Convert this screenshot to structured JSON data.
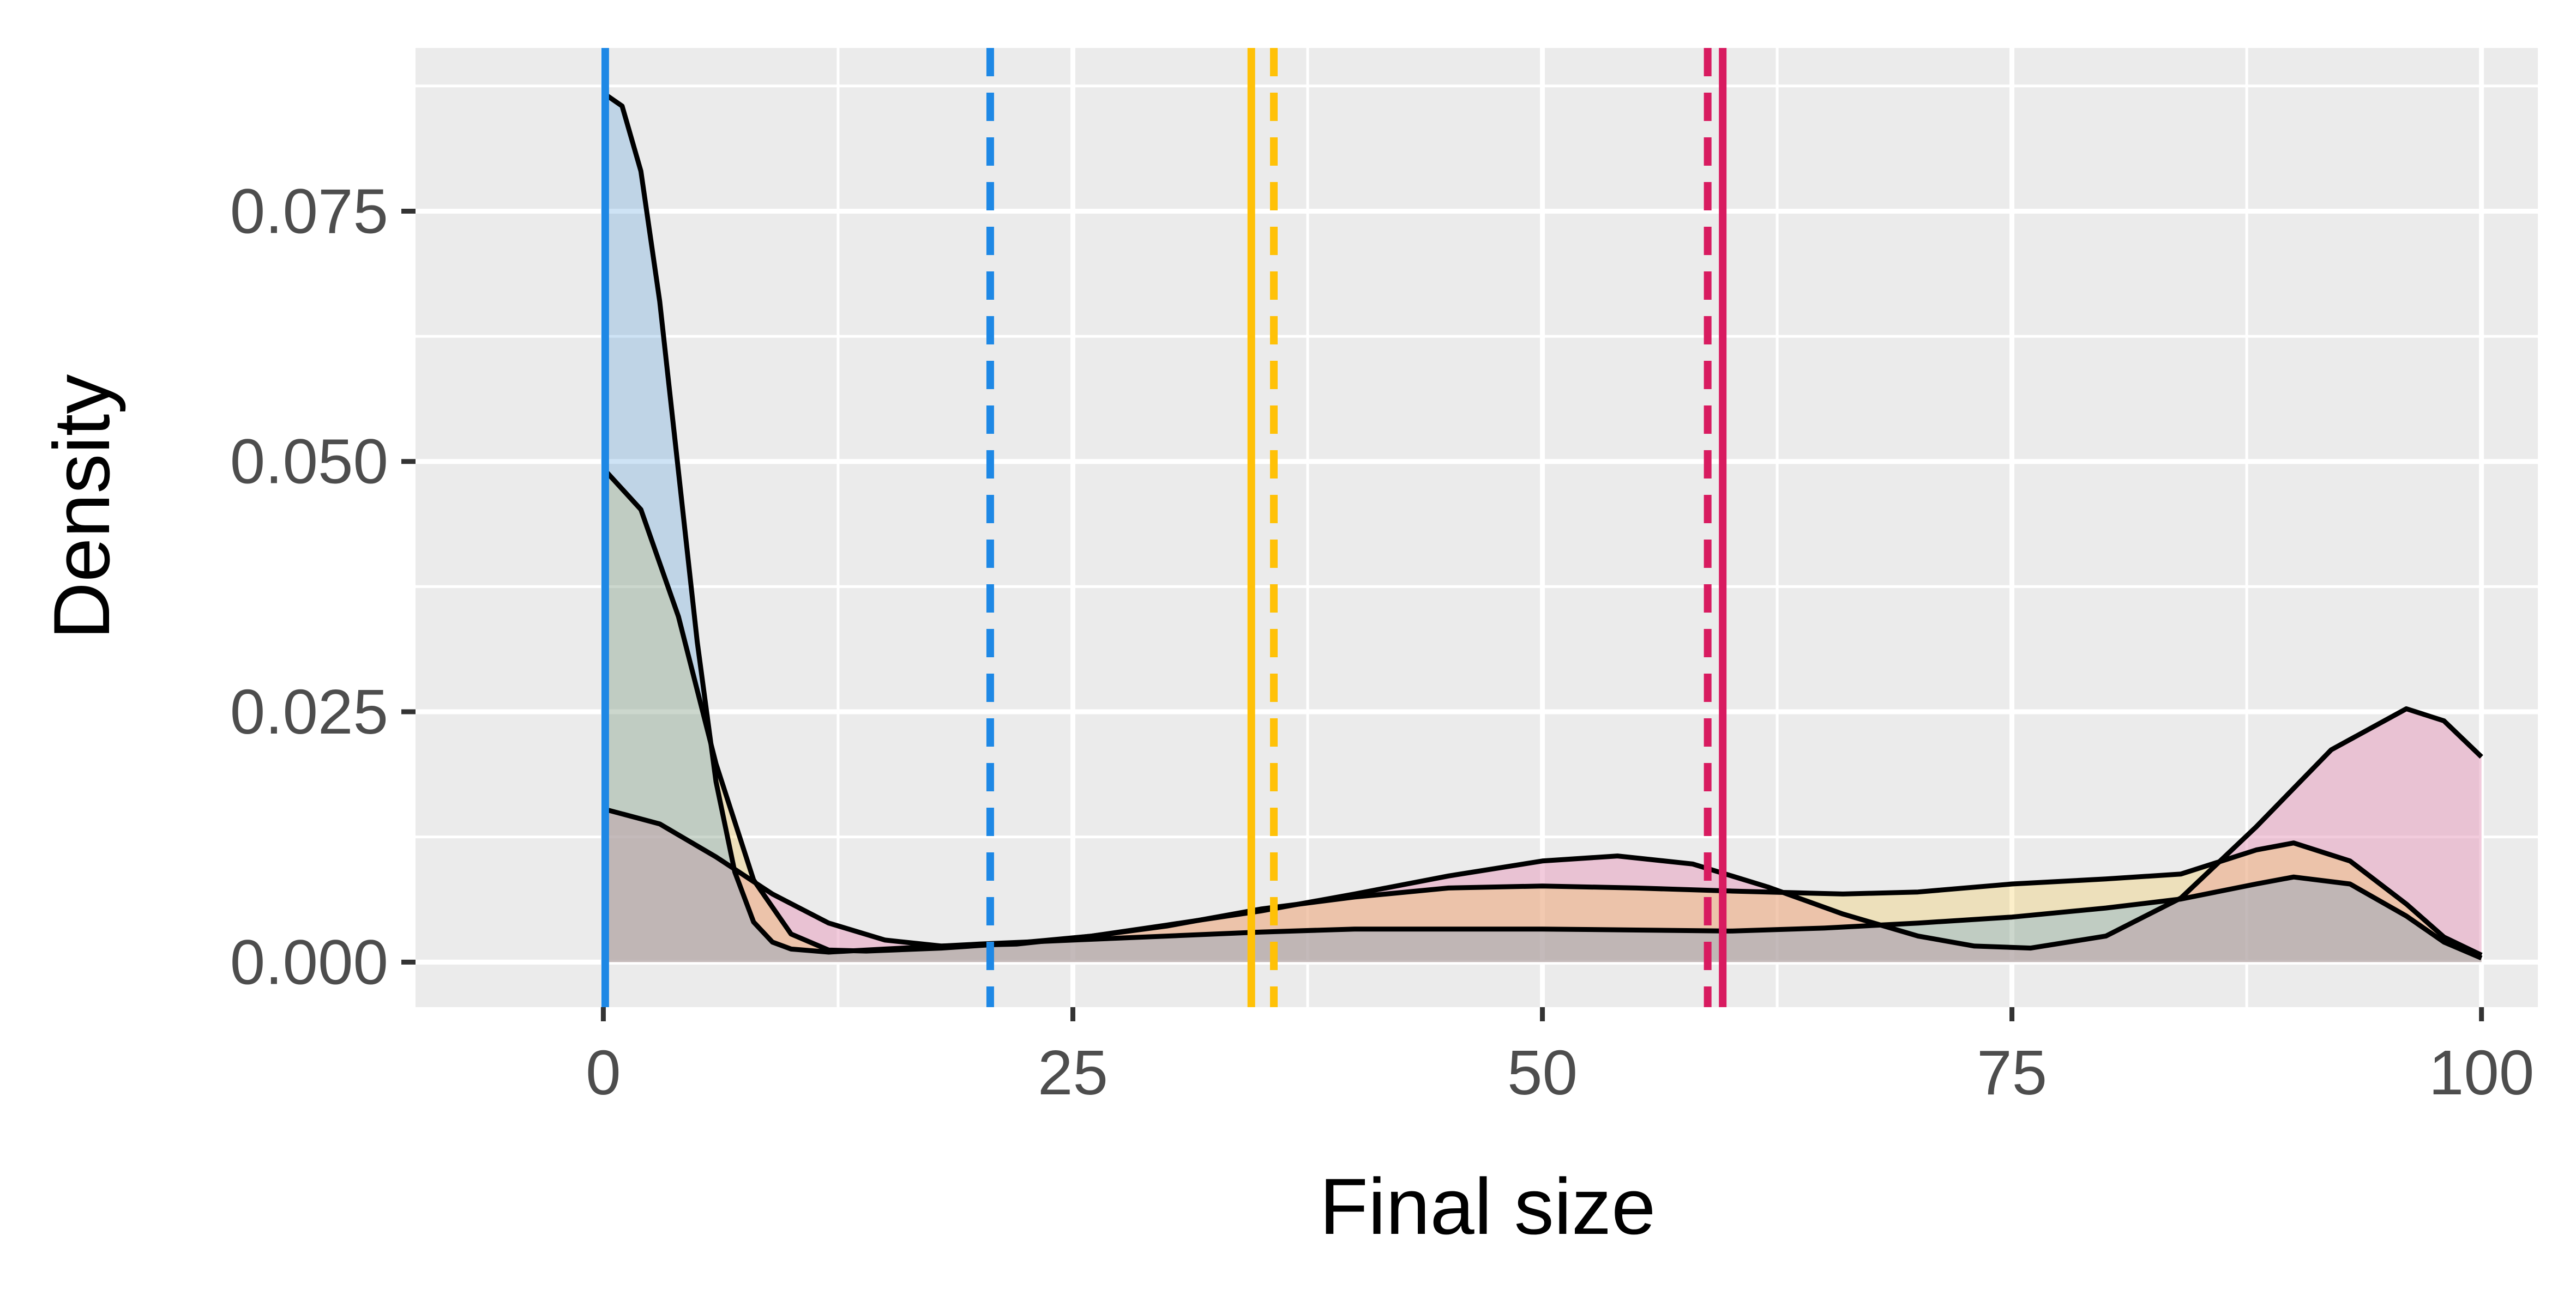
{
  "chart_data": {
    "type": "area",
    "title": "",
    "xlabel": "Final size",
    "ylabel": "Density",
    "xlim": [
      -10,
      103
    ],
    "ylim": [
      -0.0045,
      0.0913
    ],
    "x_ticks": [
      0,
      25,
      50,
      75,
      100
    ],
    "x_tick_labels": [
      "0",
      "25",
      "50",
      "75",
      "100"
    ],
    "y_ticks": [
      0.0,
      0.025,
      0.05,
      0.075
    ],
    "y_tick_labels": [
      "0.000",
      "0.025",
      "0.050",
      "0.075"
    ],
    "grid": true,
    "background": "#ebebeb",
    "legend": "none",
    "series": [
      {
        "color": "#e8a0c0",
        "fill_opacity": 0.55,
        "points": [
          [
            0,
            0.0153
          ],
          [
            3,
            0.0138
          ],
          [
            6,
            0.0105
          ],
          [
            9,
            0.0068
          ],
          [
            12,
            0.0039
          ],
          [
            15,
            0.0022
          ],
          [
            18,
            0.0016
          ],
          [
            22,
            0.0018
          ],
          [
            26,
            0.0026
          ],
          [
            30,
            0.0037
          ],
          [
            35,
            0.0051
          ],
          [
            40,
            0.0068
          ],
          [
            45,
            0.0086
          ],
          [
            50,
            0.0101
          ],
          [
            54,
            0.0106
          ],
          [
            58,
            0.0098
          ],
          [
            62,
            0.0075
          ],
          [
            66,
            0.0048
          ],
          [
            70,
            0.0026
          ],
          [
            73,
            0.0016
          ],
          [
            76,
            0.0014
          ],
          [
            80,
            0.0026
          ],
          [
            84,
            0.0064
          ],
          [
            88,
            0.0135
          ],
          [
            92,
            0.0212
          ],
          [
            96,
            0.0253
          ],
          [
            98,
            0.0241
          ],
          [
            100,
            0.0205
          ]
        ]
      },
      {
        "color": "#f5c542",
        "fill_opacity": 0.28,
        "points": [
          [
            0,
            0.0493
          ],
          [
            2,
            0.0452
          ],
          [
            4,
            0.0345
          ],
          [
            6,
            0.0198
          ],
          [
            8,
            0.0082
          ],
          [
            10,
            0.0028
          ],
          [
            12,
            0.0012
          ],
          [
            14,
            0.0011
          ],
          [
            18,
            0.0014
          ],
          [
            22,
            0.0019
          ],
          [
            26,
            0.0026
          ],
          [
            30,
            0.0036
          ],
          [
            35,
            0.0053
          ],
          [
            40,
            0.0065
          ],
          [
            45,
            0.0074
          ],
          [
            50,
            0.0076
          ],
          [
            55,
            0.0074
          ],
          [
            60,
            0.0071
          ],
          [
            66,
            0.0068
          ],
          [
            70,
            0.007
          ],
          [
            75,
            0.0078
          ],
          [
            80,
            0.0083
          ],
          [
            84,
            0.0088
          ],
          [
            88,
            0.0112
          ],
          [
            90,
            0.0119
          ],
          [
            93,
            0.0101
          ],
          [
            96,
            0.0058
          ],
          [
            98,
            0.0025
          ],
          [
            100,
            0.0007
          ]
        ]
      },
      {
        "color": "#3a8fd6",
        "fill_opacity": 0.25,
        "points": [
          [
            0,
            0.0868
          ],
          [
            1,
            0.0855
          ],
          [
            2,
            0.079
          ],
          [
            3,
            0.066
          ],
          [
            4,
            0.049
          ],
          [
            5,
            0.032
          ],
          [
            6,
            0.018
          ],
          [
            7,
            0.009
          ],
          [
            8,
            0.004
          ],
          [
            9,
            0.002
          ],
          [
            10,
            0.0013
          ],
          [
            12,
            0.001
          ],
          [
            15,
            0.0013
          ],
          [
            20,
            0.0018
          ],
          [
            25,
            0.0022
          ],
          [
            30,
            0.0026
          ],
          [
            35,
            0.003
          ],
          [
            40,
            0.0033
          ],
          [
            45,
            0.0033
          ],
          [
            50,
            0.0033
          ],
          [
            55,
            0.0032
          ],
          [
            60,
            0.0031
          ],
          [
            65,
            0.0034
          ],
          [
            70,
            0.0039
          ],
          [
            75,
            0.0045
          ],
          [
            80,
            0.0054
          ],
          [
            84,
            0.0063
          ],
          [
            88,
            0.0078
          ],
          [
            90,
            0.0085
          ],
          [
            93,
            0.0078
          ],
          [
            96,
            0.0046
          ],
          [
            98,
            0.002
          ],
          [
            100,
            0.0004
          ]
        ]
      }
    ],
    "vlines": [
      {
        "x": 0.1,
        "color": "#1e88e5",
        "dashed": false
      },
      {
        "x": 20.6,
        "color": "#1e88e5",
        "dashed": true
      },
      {
        "x": 34.5,
        "color": "#ffc107",
        "dashed": false
      },
      {
        "x": 35.7,
        "color": "#ffc107",
        "dashed": true
      },
      {
        "x": 58.8,
        "color": "#d81b60",
        "dashed": true
      },
      {
        "x": 59.6,
        "color": "#d81b60",
        "dashed": false
      }
    ]
  }
}
